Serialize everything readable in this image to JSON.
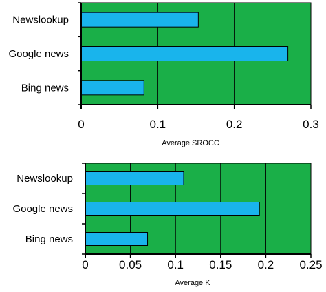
{
  "colors": {
    "plot_bg": "#1aaf48",
    "bar": "#19b4ec",
    "grid": "#000000",
    "axis": "#000000"
  },
  "chart_data": [
    {
      "type": "bar",
      "orientation": "horizontal",
      "categories": [
        "Newslookup",
        "Google news",
        "Bing news"
      ],
      "values": [
        0.153,
        0.27,
        0.082
      ],
      "xlim": [
        0,
        0.3
      ],
      "xticks": [
        0,
        0.1,
        0.2,
        0.3
      ],
      "tick_labels": [
        "0",
        "0.1",
        "0.2",
        "0.3"
      ],
      "xlabel": "Average SROCC",
      "ylabel": "",
      "title": "",
      "grid": "vertical"
    },
    {
      "type": "bar",
      "orientation": "horizontal",
      "categories": [
        "Newslookup",
        "Google news",
        "Bing news"
      ],
      "values": [
        0.109,
        0.193,
        0.069
      ],
      "xlim": [
        0,
        0.25
      ],
      "xticks": [
        0,
        0.05,
        0.1,
        0.15,
        0.2,
        0.25
      ],
      "tick_labels": [
        "0",
        "0.05",
        "0.1",
        "0.15",
        "0.2",
        "0.25"
      ],
      "xlabel": "Average  K",
      "ylabel": "",
      "title": "",
      "grid": "vertical"
    }
  ]
}
